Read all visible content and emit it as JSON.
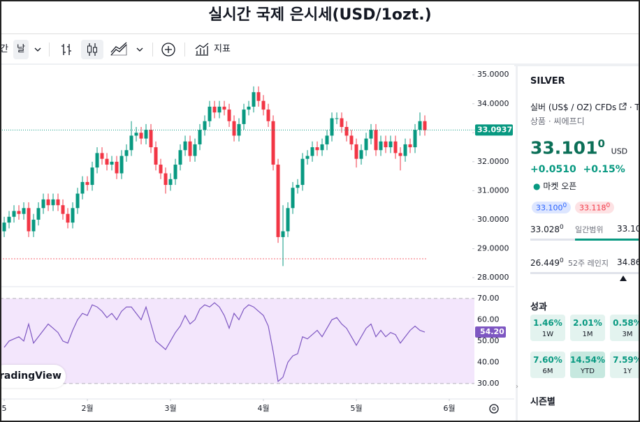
{
  "header": {
    "title": "실시간 국제 은시세(USD/1ozt.)"
  },
  "toolbar": {
    "cut_item": "간",
    "interval": "날",
    "indicators": "지표"
  },
  "logo": "TradingView",
  "chart_data": [
    {
      "type": "candlestick",
      "up_color": "#089981",
      "down_color": "#f23645",
      "open": [
        29.6,
        29.9,
        30.1,
        30.3,
        30.2,
        30.4,
        29.6,
        30.0,
        30.4,
        30.7,
        30.5,
        30.7,
        30.5,
        30.2,
        29.9,
        30.4,
        30.9,
        31.3,
        31.2,
        31.8,
        32.3,
        32.1,
        31.9,
        32.0,
        31.6,
        32.2,
        32.4,
        32.9,
        33.0,
        32.8,
        33.1,
        32.5,
        31.9,
        31.6,
        31.2,
        31.4,
        31.9,
        32.4,
        32.7,
        32.2,
        32.6,
        33.1,
        33.4,
        33.9,
        33.7,
        33.9,
        33.8,
        33.4,
        32.9,
        33.3,
        33.8,
        33.9,
        34.4,
        34.1,
        33.8,
        33.4,
        31.9,
        29.4,
        29.6,
        30.4,
        31.1,
        31.2,
        32.1,
        32.2,
        32.5,
        32.4,
        32.6,
        32.9,
        33.5,
        33.5,
        33.2,
        32.9,
        32.6,
        32.1,
        32.4,
        32.8,
        33.1,
        32.4,
        32.7,
        32.5,
        32.7,
        32.3,
        32.2,
        32.6,
        32.5,
        33.1,
        33.4
      ],
      "high": [
        30.1,
        30.3,
        30.5,
        30.5,
        30.6,
        30.6,
        30.2,
        30.6,
        30.9,
        30.9,
        30.9,
        30.9,
        30.7,
        30.4,
        30.6,
        31.1,
        31.5,
        31.5,
        32.0,
        32.5,
        32.5,
        32.3,
        32.2,
        32.2,
        32.4,
        32.6,
        33.4,
        33.2,
        33.2,
        33.3,
        33.3,
        32.7,
        32.1,
        31.8,
        31.6,
        32.1,
        32.6,
        32.9,
        32.9,
        32.8,
        33.3,
        33.6,
        34.1,
        34.1,
        34.1,
        34.1,
        34.0,
        33.6,
        33.5,
        34.0,
        34.1,
        34.6,
        34.6,
        34.3,
        34.0,
        33.6,
        32.1,
        30.5,
        30.6,
        31.3,
        31.4,
        32.3,
        32.4,
        32.7,
        32.7,
        32.8,
        33.1,
        33.7,
        33.7,
        33.7,
        33.4,
        33.1,
        32.8,
        32.6,
        33.0,
        33.3,
        33.3,
        32.9,
        32.9,
        32.9,
        32.9,
        32.5,
        32.8,
        32.8,
        33.3,
        33.7,
        33.6
      ],
      "low": [
        29.4,
        29.7,
        29.9,
        30.0,
        30.0,
        29.4,
        29.4,
        29.8,
        30.2,
        30.3,
        30.3,
        30.3,
        30.0,
        29.7,
        29.7,
        30.2,
        30.7,
        31.0,
        31.0,
        31.6,
        31.9,
        31.7,
        31.7,
        31.4,
        31.4,
        32.0,
        32.2,
        32.7,
        32.6,
        32.6,
        32.3,
        31.7,
        31.4,
        30.9,
        31.0,
        31.2,
        31.7,
        32.2,
        32.0,
        32.0,
        32.4,
        32.9,
        33.2,
        33.5,
        33.5,
        33.6,
        33.2,
        32.7,
        32.7,
        33.1,
        33.6,
        33.7,
        33.9,
        33.6,
        33.2,
        31.7,
        29.2,
        28.4,
        29.4,
        30.2,
        30.9,
        31.0,
        31.9,
        32.0,
        32.2,
        32.2,
        32.4,
        32.7,
        33.3,
        33.0,
        32.7,
        32.4,
        31.8,
        31.9,
        32.2,
        32.6,
        32.2,
        32.2,
        32.3,
        32.3,
        32.1,
        31.7,
        32.0,
        32.3,
        32.3,
        32.9,
        32.9
      ],
      "close": [
        29.9,
        30.1,
        30.3,
        30.2,
        30.4,
        29.6,
        30.0,
        30.4,
        30.7,
        30.5,
        30.7,
        30.5,
        30.2,
        29.9,
        30.4,
        30.9,
        31.3,
        31.2,
        31.8,
        32.3,
        32.1,
        31.9,
        32.0,
        31.6,
        32.2,
        32.4,
        32.9,
        33.0,
        32.8,
        33.1,
        32.5,
        31.9,
        31.6,
        31.2,
        31.4,
        31.9,
        32.4,
        32.7,
        32.2,
        32.6,
        33.1,
        33.4,
        33.9,
        33.7,
        33.9,
        33.8,
        33.4,
        32.9,
        33.3,
        33.8,
        33.9,
        34.4,
        34.1,
        33.8,
        33.4,
        31.9,
        29.4,
        29.6,
        30.4,
        31.1,
        31.2,
        32.1,
        32.2,
        32.5,
        32.4,
        32.6,
        32.9,
        33.5,
        33.5,
        33.2,
        32.9,
        32.6,
        32.1,
        32.4,
        32.8,
        33.1,
        32.4,
        32.7,
        32.5,
        32.7,
        32.3,
        32.2,
        32.6,
        32.5,
        33.1,
        33.4,
        33.09
      ],
      "ylim": [
        27.7,
        35.15
      ],
      "yticks": [
        {
          "value": 35,
          "label": "35.0000"
        },
        {
          "value": 34,
          "label": "34.0000"
        },
        {
          "value": 33,
          "label": "33.0000"
        },
        {
          "value": 32,
          "label": "32.0000"
        },
        {
          "value": 31,
          "label": "31.0000"
        },
        {
          "value": 30,
          "label": "30.0000"
        },
        {
          "value": 29,
          "label": "29.0000"
        },
        {
          "value": 28,
          "label": "28.0000"
        }
      ],
      "last_price": {
        "value": 33.0937,
        "label": "33.0937"
      },
      "reference_level": 28.65,
      "grid": false
    },
    {
      "type": "line",
      "color": "#7e57c2",
      "band_color": "#f3e6fc",
      "values": [
        47,
        50,
        51,
        52,
        50,
        58,
        49,
        52,
        55,
        58,
        56,
        54,
        50,
        49,
        55,
        60,
        63,
        62,
        67,
        66,
        64,
        61,
        63,
        60,
        64,
        66,
        66,
        63,
        60,
        66,
        58,
        50,
        48,
        46,
        50,
        54,
        57,
        62,
        58,
        60,
        65,
        67,
        66,
        68,
        66,
        62,
        56,
        63,
        60,
        65,
        67,
        66,
        64,
        62,
        57,
        45,
        31,
        33,
        40,
        43,
        44,
        52,
        51,
        53,
        55,
        52,
        56,
        60,
        61,
        58,
        56,
        52,
        48,
        52,
        56,
        58,
        52,
        55,
        52,
        54,
        53,
        49,
        52,
        55,
        57,
        55,
        54.2
      ],
      "last_value": {
        "value": 54.2,
        "label": "54.20"
      },
      "band": [
        30,
        70
      ],
      "ylim": [
        23.4,
        75.2
      ],
      "yticks": [
        {
          "value": 70,
          "label": "70.00"
        },
        {
          "value": 60,
          "label": "60.00"
        },
        {
          "value": 50,
          "label": "50.00"
        },
        {
          "value": 40,
          "label": "40.00"
        },
        {
          "value": 30,
          "label": "30.00"
        }
      ],
      "xlim": [
        -0.86,
        96.14
      ],
      "xticks": [
        {
          "value": 0,
          "label": "5"
        },
        {
          "value": 17,
          "label": "2월"
        },
        {
          "value": 34,
          "label": "3월"
        },
        {
          "value": 53,
          "label": "4월"
        },
        {
          "value": 72,
          "label": "5월"
        },
        {
          "value": 91,
          "label": "6월"
        }
      ],
      "grid": false
    }
  ],
  "panel": {
    "symbol": "SILVER",
    "description": "실버 (US$ / OZ) CFDs",
    "source": "TV",
    "category": "상품 · 씨에프디",
    "price": "33.101",
    "price_sup": "0",
    "currency": "USD",
    "change": "+0.0510",
    "change_pct": "+0.15%",
    "status": "마켓 오픈",
    "bid": "33.100",
    "bid_sup": "0",
    "ask": "33.118",
    "ask_sup": "0",
    "day_low": "33.028",
    "day_low_sup": "0",
    "day_range": "일간범위",
    "day_high": "33.10",
    "year_low": "26.449",
    "year_low_sup": "0",
    "year_range": "52주 레인지",
    "year_high": "34.86",
    "performance_title": "성과",
    "performance": [
      {
        "value": "1.46%",
        "period": "1W"
      },
      {
        "value": "2.01%",
        "period": "1M"
      },
      {
        "value": "0.58%",
        "period": "3M"
      },
      {
        "value": "7.60%",
        "period": "6M"
      },
      {
        "value": "14.54%",
        "period": "YTD"
      },
      {
        "value": "7.59%",
        "period": "1Y"
      }
    ],
    "seasonal": "시즌별"
  }
}
